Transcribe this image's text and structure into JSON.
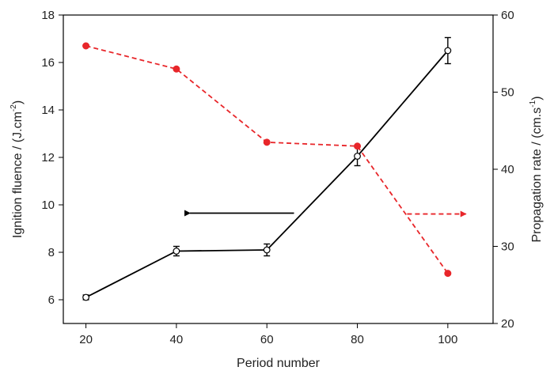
{
  "chart_data": {
    "type": "line",
    "x": [
      20,
      40,
      60,
      80,
      100
    ],
    "xlabel": "Period number",
    "xlim": [
      15,
      110
    ],
    "xticks": [
      20,
      40,
      60,
      80,
      100
    ],
    "ylabel_left": "Ignition fluence / (J.cm",
    "ylabel_left_sup": "-2",
    "ylabel_left_end": ")",
    "ylim_left": [
      5,
      18
    ],
    "yticks_left": [
      6,
      8,
      10,
      12,
      14,
      16,
      18
    ],
    "ylabel_right": "Propagation rate / (cm.s",
    "ylabel_right_sup": "-1",
    "ylabel_right_end": ")",
    "ylim_right": [
      20,
      60
    ],
    "yticks_right": [
      20,
      30,
      40,
      50,
      60
    ],
    "grid": false,
    "series": [
      {
        "axis": "left",
        "color": "#000000",
        "line_style": "solid",
        "marker": "open-circle",
        "values": [
          6.1,
          8.05,
          8.1,
          12.05,
          16.5
        ],
        "errors": [
          0.1,
          0.2,
          0.25,
          0.4,
          0.55
        ]
      },
      {
        "axis": "right",
        "color": "#e8262a",
        "line_style": "dashed",
        "marker": "filled-circle",
        "values": [
          56,
          53,
          43.5,
          43,
          26.5
        ]
      }
    ],
    "annotations": [
      {
        "type": "arrow",
        "direction": "left",
        "color": "#000000",
        "from_x": 66,
        "to_x": 43,
        "y_left": 9.65,
        "meaning": "black series uses left axis"
      },
      {
        "type": "arrow",
        "direction": "right",
        "color": "#e8262a",
        "from_x": 91,
        "to_x": 104,
        "y_right": 34.2,
        "meaning": "red series uses right axis"
      }
    ]
  }
}
